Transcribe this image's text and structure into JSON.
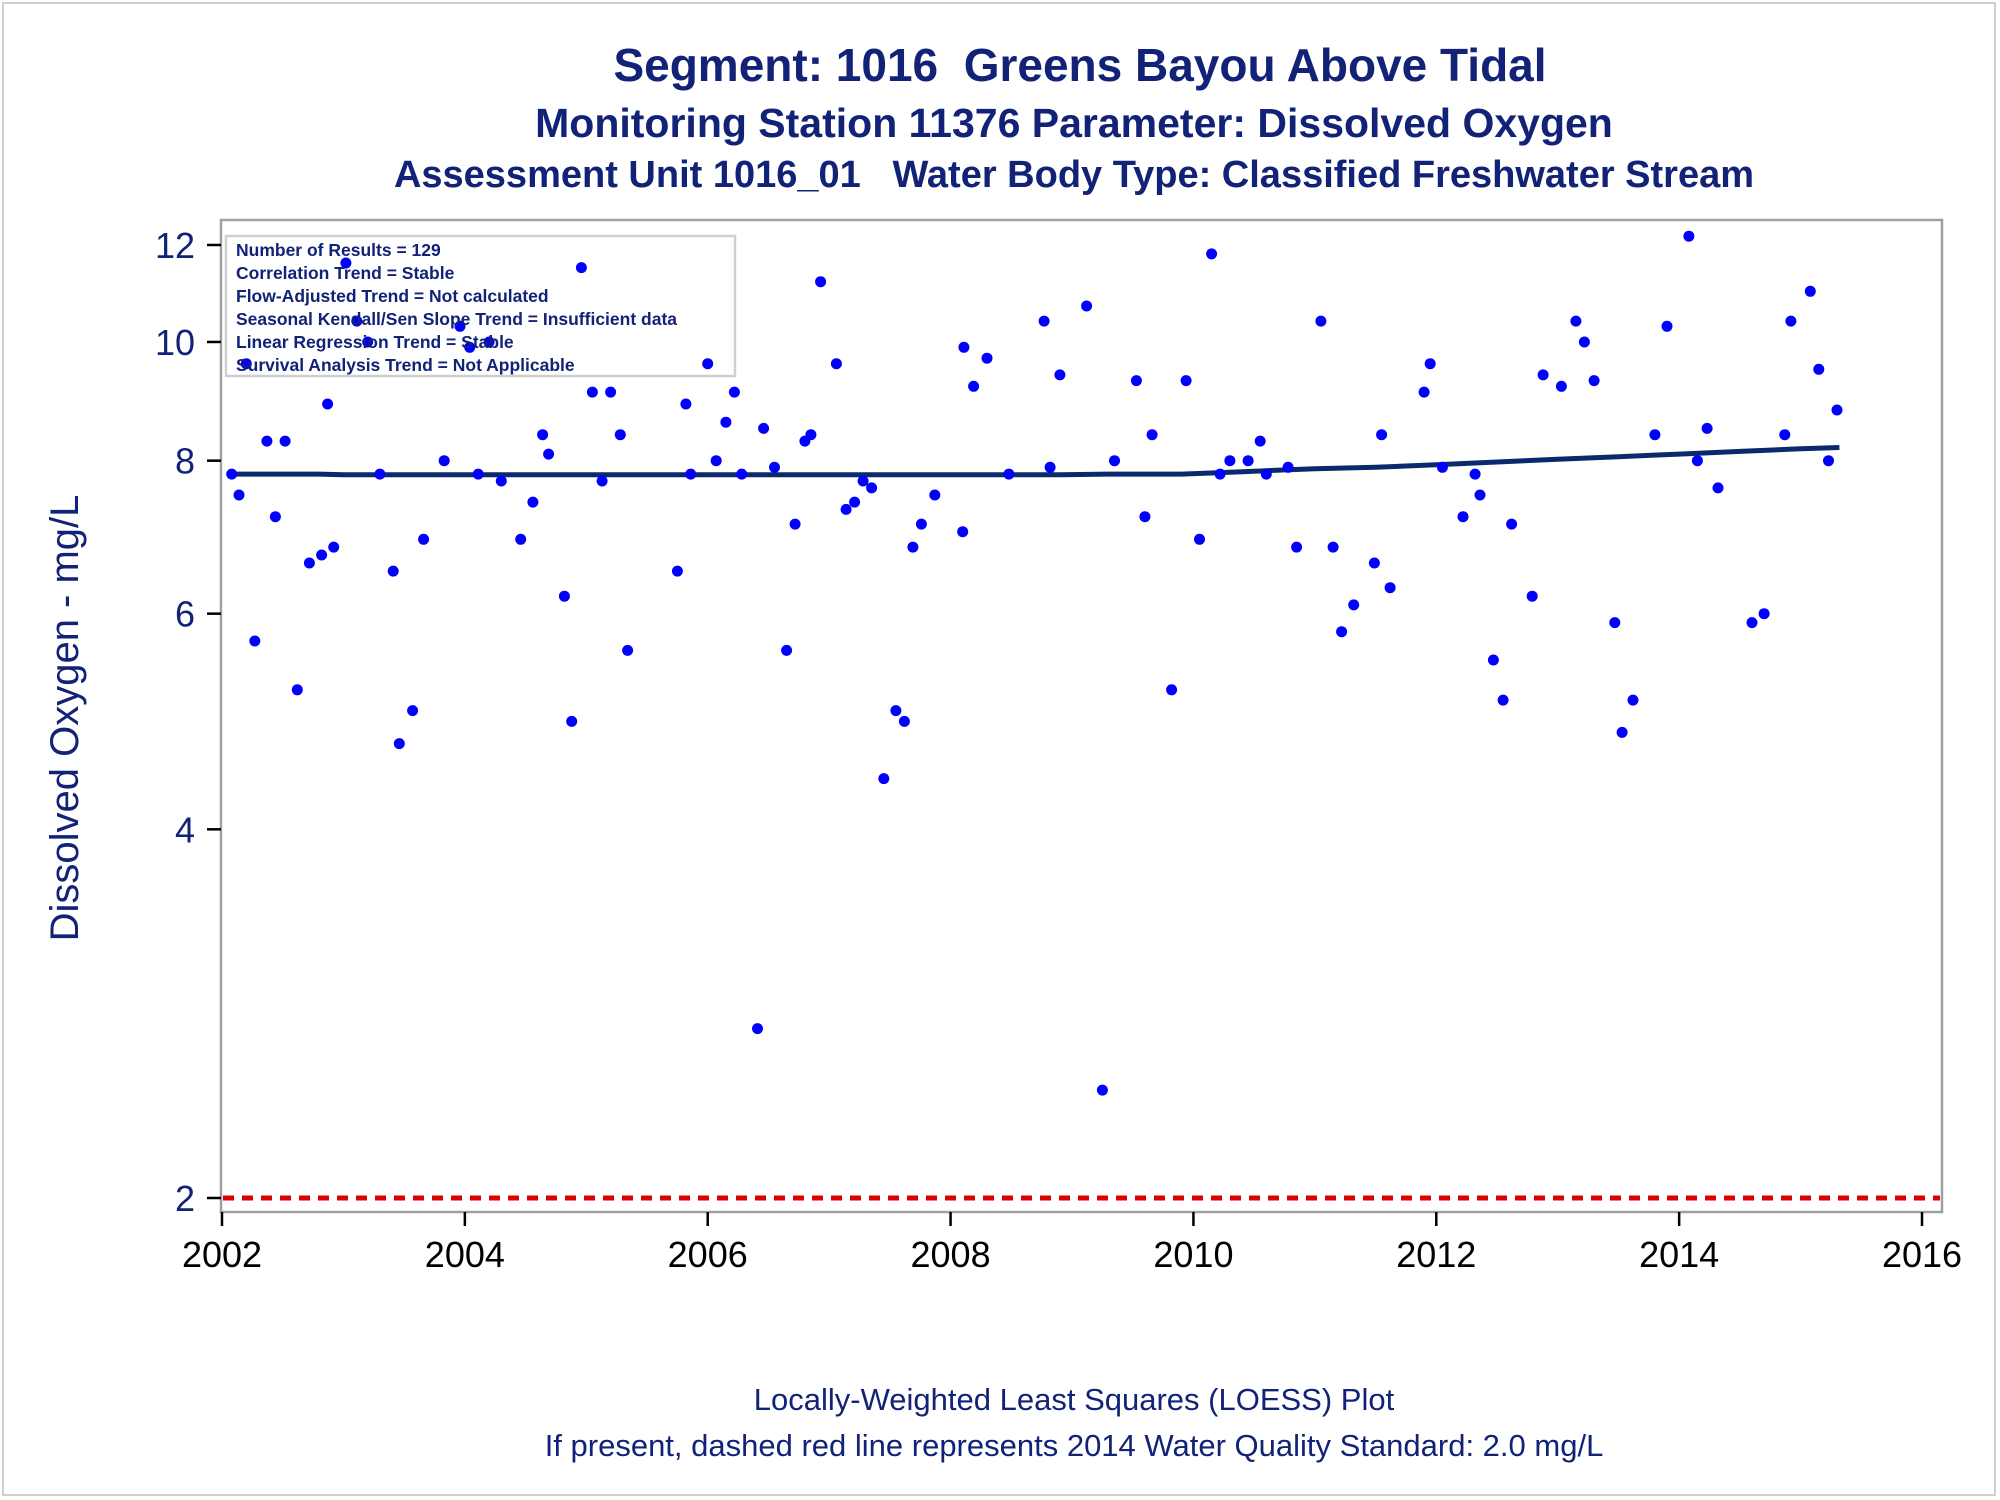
{
  "chart_data": {
    "type": "scatter",
    "title": "Segment: 1016  Greens Bayou Above Tidal",
    "subtitle": [
      "Monitoring Station 11376 Parameter: Dissolved Oxygen",
      "Assessment Unit 1016_01   Water Body Type: Classified Freshwater Stream"
    ],
    "xlabel": "",
    "ylabel": "Dissolved Oxygen - mg/L",
    "y_scale": "log",
    "xlim": [
      2002,
      2016
    ],
    "ylim": [
      1.97,
      12.4
    ],
    "x_ticks": [
      2002,
      2004,
      2006,
      2008,
      2010,
      2012,
      2014,
      2016
    ],
    "y_ticks": [
      2,
      4,
      6,
      8,
      10,
      12
    ],
    "grid": false,
    "stats_box": [
      "Number of Results = 129",
      "Correlation Trend = Stable",
      "Flow-Adjusted Trend = Not calculated",
      "Seasonal Kendall/Sen Slope Trend = Insufficient data",
      "Linear Regression Trend = Stable",
      "Survival Analysis Trend = Not Applicable"
    ],
    "points": [
      [
        2002.08,
        7.8
      ],
      [
        2002.14,
        7.5
      ],
      [
        2002.2,
        9.6
      ],
      [
        2002.27,
        5.7
      ],
      [
        2002.37,
        8.3
      ],
      [
        2002.44,
        7.2
      ],
      [
        2002.52,
        8.3
      ],
      [
        2002.62,
        5.2
      ],
      [
        2002.72,
        6.6
      ],
      [
        2002.82,
        6.7
      ],
      [
        2002.87,
        8.9
      ],
      [
        2002.92,
        6.8
      ],
      [
        2003.02,
        11.6
      ],
      [
        2003.11,
        10.4
      ],
      [
        2003.2,
        10.0
      ],
      [
        2003.3,
        7.8
      ],
      [
        2003.41,
        6.5
      ],
      [
        2003.46,
        4.7
      ],
      [
        2003.57,
        5.0
      ],
      [
        2003.66,
        6.9
      ],
      [
        2003.83,
        8.0
      ],
      [
        2003.96,
        10.3
      ],
      [
        2004.04,
        9.9
      ],
      [
        2004.11,
        7.8
      ],
      [
        2004.2,
        10.0
      ],
      [
        2004.3,
        7.7
      ],
      [
        2004.46,
        6.9
      ],
      [
        2004.56,
        7.4
      ],
      [
        2004.64,
        8.4
      ],
      [
        2004.69,
        8.1
      ],
      [
        2004.82,
        6.2
      ],
      [
        2004.88,
        4.9
      ],
      [
        2004.96,
        11.5
      ],
      [
        2005.05,
        9.1
      ],
      [
        2005.13,
        7.7
      ],
      [
        2005.2,
        9.1
      ],
      [
        2005.28,
        8.4
      ],
      [
        2005.34,
        5.6
      ],
      [
        2005.75,
        6.5
      ],
      [
        2005.82,
        8.9
      ],
      [
        2005.86,
        7.8
      ],
      [
        2006.0,
        9.6
      ],
      [
        2006.07,
        8.0
      ],
      [
        2006.15,
        8.6
      ],
      [
        2006.22,
        9.1
      ],
      [
        2006.28,
        7.8
      ],
      [
        2006.41,
        2.75
      ],
      [
        2006.46,
        8.5
      ],
      [
        2006.55,
        7.9
      ],
      [
        2006.65,
        5.6
      ],
      [
        2006.72,
        7.1
      ],
      [
        2006.8,
        8.3
      ],
      [
        2006.85,
        8.4
      ],
      [
        2006.93,
        11.2
      ],
      [
        2007.06,
        9.6
      ],
      [
        2007.14,
        7.3
      ],
      [
        2007.21,
        7.4
      ],
      [
        2007.28,
        7.7
      ],
      [
        2007.35,
        7.6
      ],
      [
        2007.45,
        4.4
      ],
      [
        2007.55,
        5.0
      ],
      [
        2007.62,
        4.9
      ],
      [
        2007.69,
        6.8
      ],
      [
        2007.76,
        7.1
      ],
      [
        2007.87,
        7.5
      ],
      [
        2008.1,
        7.0
      ],
      [
        2008.11,
        9.9
      ],
      [
        2008.19,
        9.2
      ],
      [
        2008.3,
        9.7
      ],
      [
        2008.48,
        7.8
      ],
      [
        2008.77,
        10.4
      ],
      [
        2008.82,
        7.9
      ],
      [
        2008.9,
        9.4
      ],
      [
        2009.12,
        10.7
      ],
      [
        2009.25,
        2.45
      ],
      [
        2009.35,
        8.0
      ],
      [
        2009.53,
        9.3
      ],
      [
        2009.6,
        7.2
      ],
      [
        2009.66,
        8.4
      ],
      [
        2009.82,
        5.2
      ],
      [
        2009.94,
        9.3
      ],
      [
        2010.05,
        6.9
      ],
      [
        2010.15,
        11.8
      ],
      [
        2010.22,
        7.8
      ],
      [
        2010.3,
        8.0
      ],
      [
        2010.45,
        8.0
      ],
      [
        2010.55,
        8.3
      ],
      [
        2010.6,
        7.8
      ],
      [
        2010.78,
        7.9
      ],
      [
        2010.85,
        6.8
      ],
      [
        2011.05,
        10.4
      ],
      [
        2011.15,
        6.8
      ],
      [
        2011.22,
        5.8
      ],
      [
        2011.32,
        6.1
      ],
      [
        2011.49,
        6.6
      ],
      [
        2011.55,
        8.4
      ],
      [
        2011.62,
        6.3
      ],
      [
        2011.9,
        9.1
      ],
      [
        2011.95,
        9.6
      ],
      [
        2012.05,
        7.9
      ],
      [
        2012.22,
        7.2
      ],
      [
        2012.32,
        7.8
      ],
      [
        2012.36,
        7.5
      ],
      [
        2012.47,
        5.5
      ],
      [
        2012.55,
        5.1
      ],
      [
        2012.62,
        7.1
      ],
      [
        2012.79,
        6.2
      ],
      [
        2012.88,
        9.4
      ],
      [
        2013.03,
        9.2
      ],
      [
        2013.15,
        10.4
      ],
      [
        2013.22,
        10.0
      ],
      [
        2013.3,
        9.3
      ],
      [
        2013.47,
        5.9
      ],
      [
        2013.53,
        4.8
      ],
      [
        2013.62,
        5.1
      ],
      [
        2013.8,
        8.4
      ],
      [
        2013.9,
        10.3
      ],
      [
        2014.08,
        12.2
      ],
      [
        2014.15,
        8.0
      ],
      [
        2014.23,
        8.5
      ],
      [
        2014.32,
        7.6
      ],
      [
        2014.6,
        5.9
      ],
      [
        2014.7,
        6.0
      ],
      [
        2014.87,
        8.4
      ],
      [
        2014.92,
        10.4
      ],
      [
        2015.08,
        11.0
      ],
      [
        2015.15,
        9.5
      ],
      [
        2015.23,
        8.0
      ],
      [
        2015.3,
        8.8
      ]
    ],
    "loess": [
      [
        2002.08,
        7.8
      ],
      [
        2002.8,
        7.8
      ],
      [
        2003.0,
        7.79
      ],
      [
        2004.0,
        7.79
      ],
      [
        2005.0,
        7.79
      ],
      [
        2006.0,
        7.79
      ],
      [
        2007.0,
        7.79
      ],
      [
        2008.0,
        7.79
      ],
      [
        2008.9,
        7.79
      ],
      [
        2009.3,
        7.8
      ],
      [
        2009.9,
        7.8
      ],
      [
        2010.2,
        7.82
      ],
      [
        2010.6,
        7.85
      ],
      [
        2011.0,
        7.88
      ],
      [
        2011.5,
        7.9
      ],
      [
        2012.0,
        7.94
      ],
      [
        2012.5,
        7.98
      ],
      [
        2013.0,
        8.02
      ],
      [
        2013.5,
        8.06
      ],
      [
        2014.0,
        8.1
      ],
      [
        2014.5,
        8.14
      ],
      [
        2015.0,
        8.18
      ],
      [
        2015.32,
        8.2
      ]
    ],
    "standard_line": 2.0,
    "colors": {
      "points": "#0000ff",
      "loess": "#0b2a6e",
      "standard": "#dd0000",
      "text": "#112277"
    },
    "footnotes": [
      "Locally-Weighted Least Squares (LOESS) Plot",
      "If present, dashed red line represents 2014 Water Quality Standard: 2.0 mg/L"
    ]
  }
}
